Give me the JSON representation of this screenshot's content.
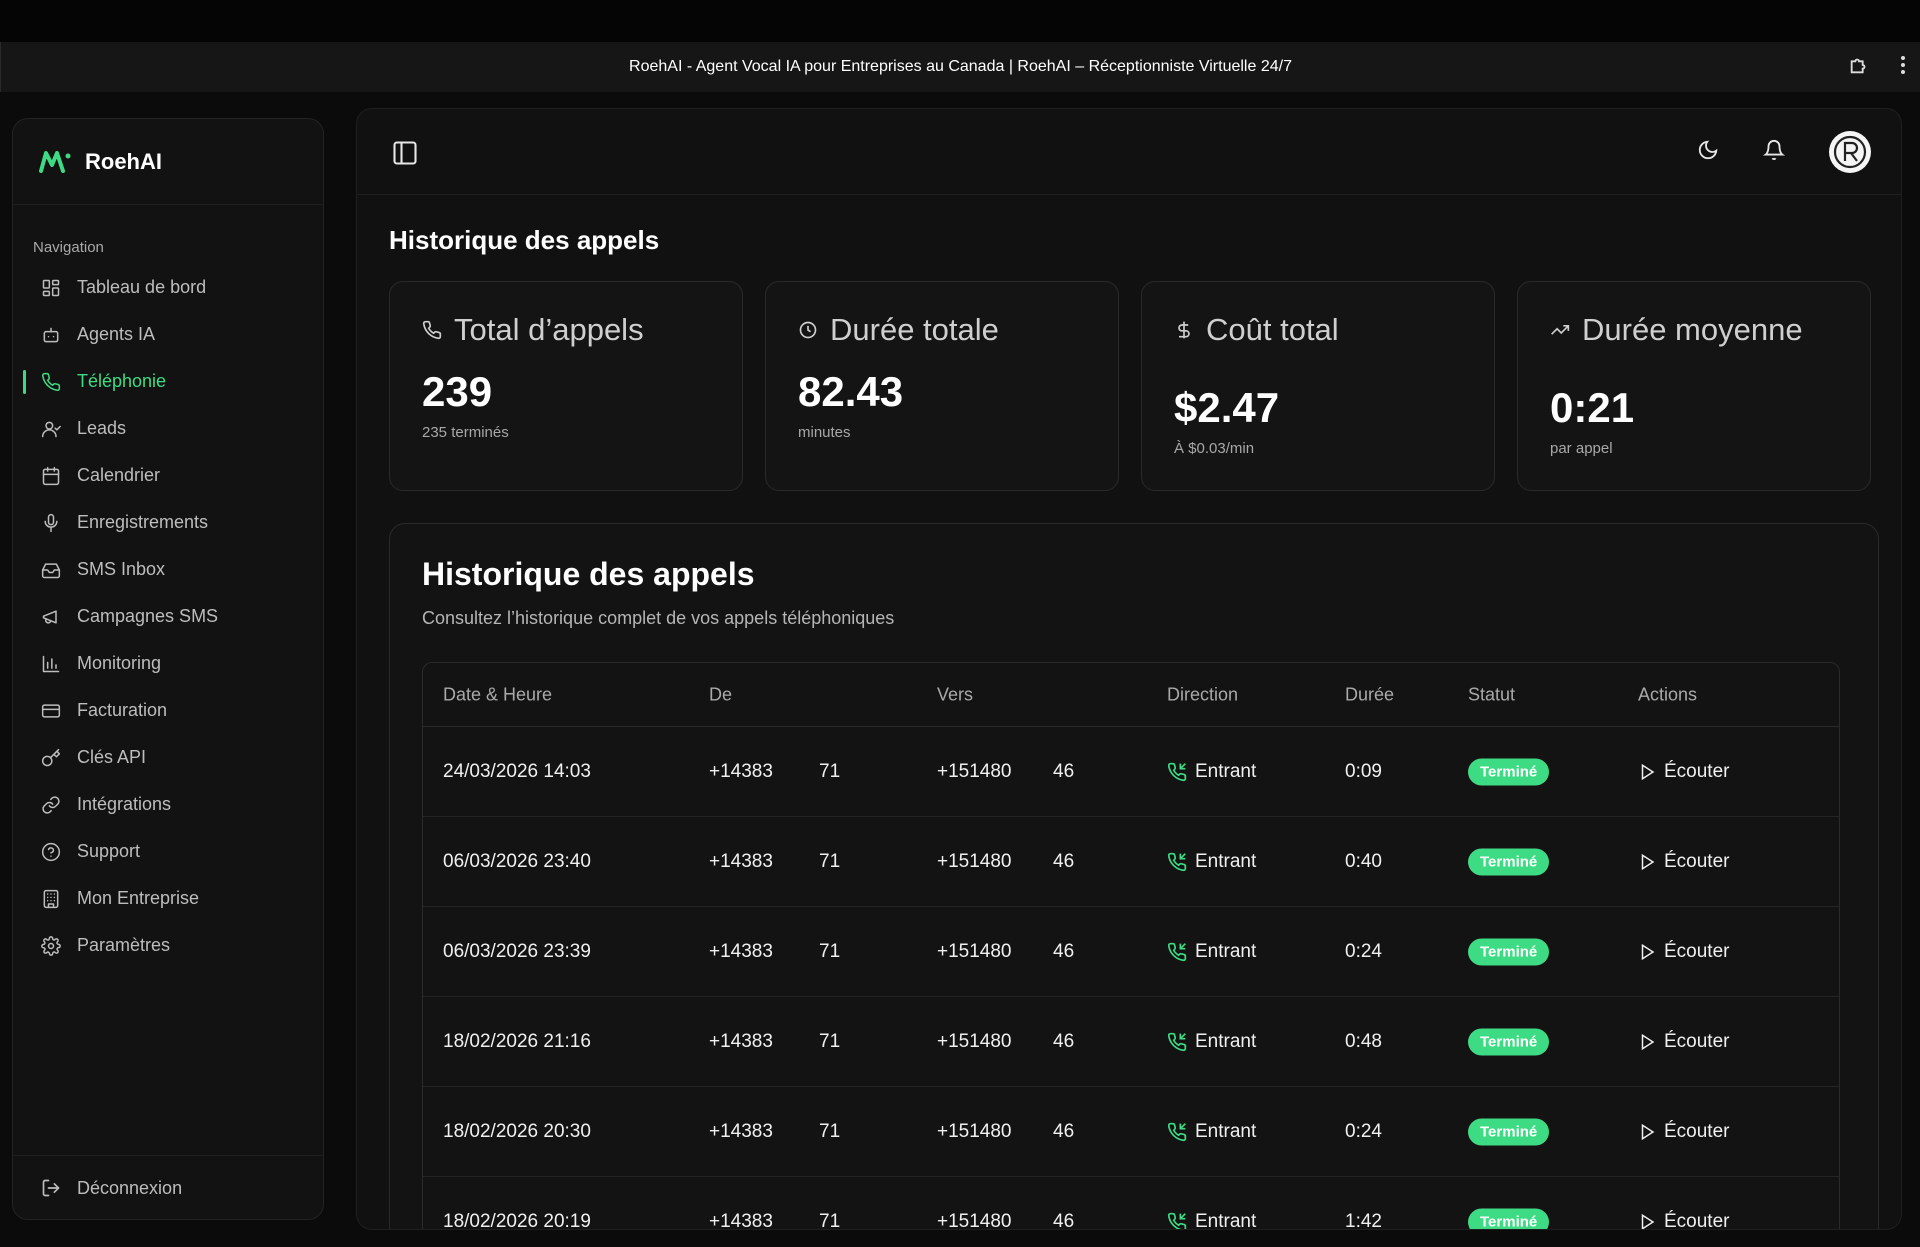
{
  "browser": {
    "title": "RoehAI - Agent Vocal IA pour Entreprises au Canada | RoehAI – Réceptionniste Virtuelle 24/7"
  },
  "sidebar": {
    "brand": "RoehAI",
    "heading": "Navigation",
    "items": [
      {
        "label": "Tableau de bord",
        "icon": "dashboard-icon"
      },
      {
        "label": "Agents IA",
        "icon": "bot-icon"
      },
      {
        "label": "Téléphonie",
        "icon": "phone-icon",
        "active": true
      },
      {
        "label": "Leads",
        "icon": "user-icon"
      },
      {
        "label": "Calendrier",
        "icon": "calendar-icon"
      },
      {
        "label": "Enregistrements",
        "icon": "microphone-icon"
      },
      {
        "label": "SMS Inbox",
        "icon": "inbox-icon"
      },
      {
        "label": "Campagnes SMS",
        "icon": "megaphone-icon"
      },
      {
        "label": "Monitoring",
        "icon": "bar-chart-icon"
      },
      {
        "label": "Facturation",
        "icon": "credit-card-icon"
      },
      {
        "label": "Clés API",
        "icon": "key-icon"
      },
      {
        "label": "Intégrations",
        "icon": "link-icon"
      },
      {
        "label": "Support",
        "icon": "help-icon"
      },
      {
        "label": "Mon Entreprise",
        "icon": "building-icon"
      },
      {
        "label": "Paramètres",
        "icon": "settings-icon"
      }
    ],
    "logout": "Déconnexion"
  },
  "page": {
    "title": "Historique des appels"
  },
  "stats": [
    {
      "label": "Total d’appels",
      "value": "239",
      "sub": "235 terminés",
      "icon": "phone-icon"
    },
    {
      "label": "Durée totale",
      "value": "82.43",
      "sub": "minutes",
      "icon": "clock-icon"
    },
    {
      "label": "Coût total",
      "value": "$2.47",
      "sub": "À $0.03/min",
      "icon": "dollar-icon"
    },
    {
      "label": "Durée moyenne",
      "value": "0:21",
      "sub": "par appel",
      "icon": "trending-up-icon"
    }
  ],
  "history": {
    "title": "Historique des appels",
    "subtitle": "Consultez l’historique complet de vos appels téléphoniques",
    "columns": [
      "Date & Heure",
      "De",
      "Vers",
      "Direction",
      "Durée",
      "Statut",
      "Actions"
    ],
    "rows": [
      {
        "date": "24/03/2026 14:03",
        "from_a": "+14383",
        "from_b": "71",
        "to_a": "+151480",
        "to_b": "46",
        "direction": "Entrant",
        "duration": "0:09",
        "status": "Terminé",
        "action": "Écouter"
      },
      {
        "date": "06/03/2026 23:40",
        "from_a": "+14383",
        "from_b": "71",
        "to_a": "+151480",
        "to_b": "46",
        "direction": "Entrant",
        "duration": "0:40",
        "status": "Terminé",
        "action": "Écouter"
      },
      {
        "date": "06/03/2026 23:39",
        "from_a": "+14383",
        "from_b": "71",
        "to_a": "+151480",
        "to_b": "46",
        "direction": "Entrant",
        "duration": "0:24",
        "status": "Terminé",
        "action": "Écouter"
      },
      {
        "date": "18/02/2026 21:16",
        "from_a": "+14383",
        "from_b": "71",
        "to_a": "+151480",
        "to_b": "46",
        "direction": "Entrant",
        "duration": "0:48",
        "status": "Terminé",
        "action": "Écouter"
      },
      {
        "date": "18/02/2026 20:30",
        "from_a": "+14383",
        "from_b": "71",
        "to_a": "+151480",
        "to_b": "46",
        "direction": "Entrant",
        "duration": "0:24",
        "status": "Terminé",
        "action": "Écouter"
      },
      {
        "date": "18/02/2026 20:19",
        "from_a": "+14383",
        "from_b": "71",
        "to_a": "+151480",
        "to_b": "46",
        "direction": "Entrant",
        "duration": "1:42",
        "status": "Terminé",
        "action": "Écouter"
      }
    ]
  },
  "colors": {
    "accent": "#3ddc84",
    "background": "#0b0b0b",
    "card": "#141414"
  }
}
